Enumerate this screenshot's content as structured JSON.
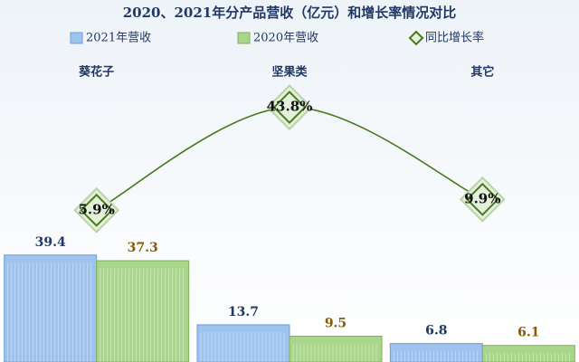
{
  "chart_data": {
    "type": "bar",
    "title": "2020、2021年分产品营收（亿元）和增长率情况对比",
    "categories": [
      "葵花子",
      "坚果类",
      "其它"
    ],
    "series": [
      {
        "name": "2021年营收",
        "color": "#9dc3ee",
        "values": [
          39.4,
          13.7,
          6.8
        ]
      },
      {
        "name": "2020年营收",
        "color": "#a9d68a",
        "values": [
          37.3,
          9.5,
          6.1
        ]
      },
      {
        "name": "同比增长率",
        "type": "line",
        "axis": "y2",
        "color": "#4a7a1e",
        "values": [
          5.9,
          43.8,
          9.9
        ],
        "value_labels": [
          "5.9%",
          "43.8%",
          "9.9%"
        ]
      }
    ],
    "ylim": [
      0,
      120
    ],
    "y2lim": [
      -50,
      70
    ]
  }
}
